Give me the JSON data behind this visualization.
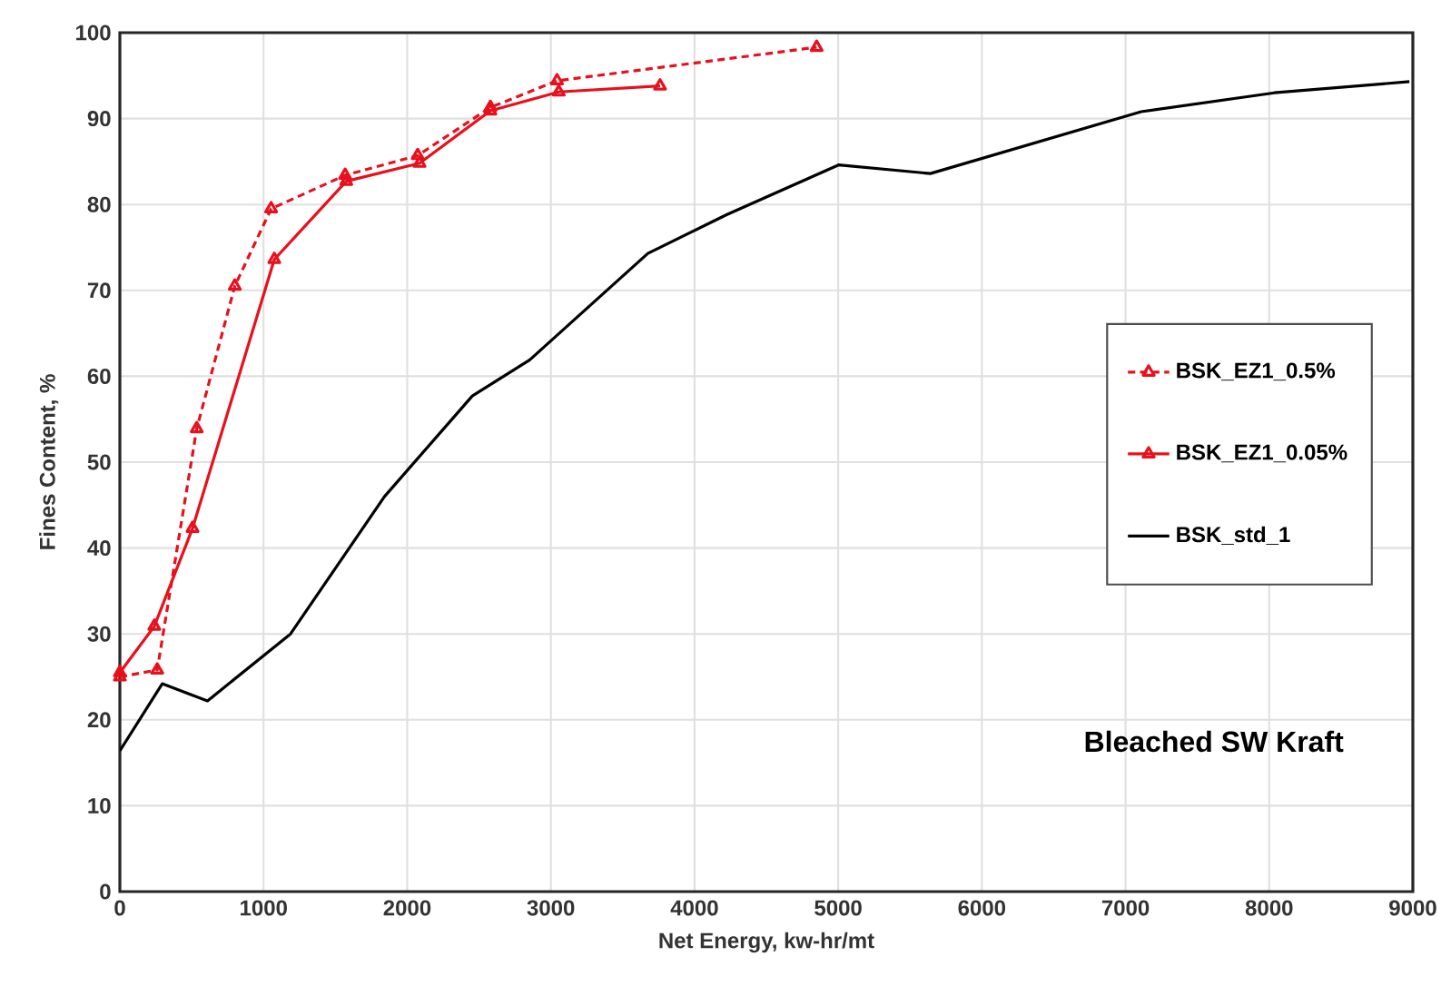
{
  "chart_data": {
    "type": "line",
    "xlabel": "Net Energy, kw-hr/mt",
    "ylabel": "Fines Content, %",
    "xlim": [
      0,
      9000
    ],
    "ylim": [
      0,
      100
    ],
    "xticks": [
      0,
      1000,
      2000,
      3000,
      4000,
      5000,
      6000,
      7000,
      8000,
      9000
    ],
    "yticks": [
      0,
      10,
      20,
      30,
      40,
      50,
      60,
      70,
      80,
      90,
      100
    ],
    "grid": true,
    "legend": "right",
    "annotations": [
      "Bleached SW Kraft"
    ],
    "series": [
      {
        "name": "BSK_EZ1_0.5%",
        "color": "#e8101c",
        "marker": "triangle",
        "line_style": "dashed",
        "x": [
          0,
          260,
          535,
          800,
          1053,
          1568,
          2073,
          2579,
          3043,
          4850
        ],
        "values": [
          25,
          25.8,
          53.9,
          70.5,
          79.5,
          83.4,
          85.7,
          91.3,
          94.4,
          98.3
        ]
      },
      {
        "name": "BSK_EZ1_0.05%",
        "color": "#e8101c",
        "marker": "triangle",
        "line_style": "solid",
        "x": [
          0,
          240,
          506,
          1075,
          1576,
          2086,
          2579,
          3055,
          3760
        ],
        "values": [
          25.5,
          30.9,
          42.3,
          73.6,
          82.7,
          84.8,
          90.9,
          93.1,
          93.8
        ]
      },
      {
        "name": "BSK_std_1",
        "color": "#000000",
        "marker": "none",
        "line_style": "solid",
        "x": [
          0,
          295,
          610,
          1188,
          1842,
          2453,
          2853,
          3675,
          4223,
          5002,
          5642,
          7109,
          8036,
          8976
        ],
        "values": [
          16.4,
          24.2,
          22.2,
          30.0,
          46.0,
          57.7,
          61.9,
          74.3,
          78.8,
          84.6,
          83.6,
          90.8,
          93.0,
          94.3
        ]
      }
    ]
  }
}
